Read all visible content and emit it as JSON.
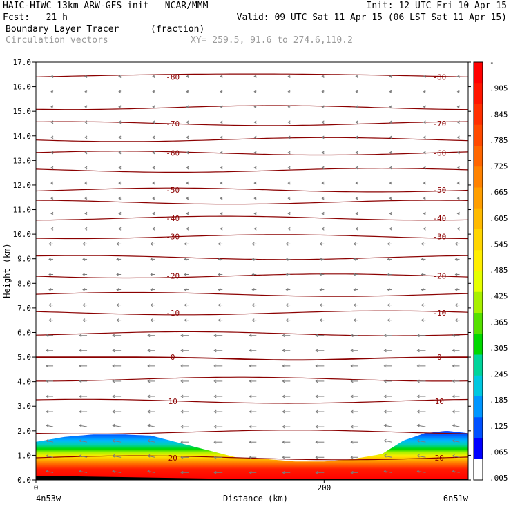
{
  "header": {
    "line1_left": "HAIC-HIWC 13km ARW-GFS init   NCAR/MMM",
    "line1_right": "Init: 12 UTC Fri 10 Apr 15",
    "line2_left": "Fcst:   21 h",
    "line2_right": "Valid: 09 UTC Sat 11 Apr 15 (06 LST Sat 11 Apr 15)",
    "field_name": "Boundary Layer Tracer",
    "field_units": "(fraction)",
    "vector_label": "Circulation vectors",
    "xy_label": "XY= 259.5, 91.6 to 274.6,110.2"
  },
  "chart_data": {
    "type": "cross-section",
    "xlabel": "Distance (km)",
    "ylabel": "Height (km)",
    "xlim": [
      0,
      300
    ],
    "ylim": [
      0,
      17
    ],
    "x_ticks": [
      0,
      200
    ],
    "x_end_labels": [
      "4n53w",
      "6n51w"
    ],
    "y_ticks": [
      "0.0",
      "1.0",
      "2.0",
      "3.0",
      "4.0",
      "5.0",
      "6.0",
      "7.0",
      "8.0",
      "9.0",
      "10.0",
      "11.0",
      "12.0",
      "13.0",
      "14.0",
      "15.0",
      "16.0",
      "17.0"
    ],
    "colorbar_labels": [
      "-",
      ".905",
      ".845",
      ".785",
      ".725",
      ".665",
      ".605",
      ".545",
      ".485",
      ".425",
      ".365",
      ".305",
      ".245",
      ".185",
      ".125",
      ".065",
      ".005"
    ],
    "colorbar_colors": [
      "#ff0000",
      "#ff1500",
      "#ff2f00",
      "#ff4a00",
      "#ff6600",
      "#ff8200",
      "#ff9e00",
      "#ffba00",
      "#ffd500",
      "#ffee00",
      "#e6ff00",
      "#a8f000",
      "#55e000",
      "#00d800",
      "#00d49a",
      "#00c8e0",
      "#0096ff",
      "#0050ff",
      "#0000ff",
      "#ffffff"
    ],
    "temperature_contours": {
      "color": "#8b0000",
      "lines": [
        {
          "label": "20",
          "height_km": 0.9
        },
        {
          "label": "10",
          "height_km": 3.2
        },
        {
          "label": "0",
          "height_km": 5.0
        },
        {
          "label": "-10",
          "height_km": 6.8
        },
        {
          "label": "-20",
          "height_km": 8.3
        },
        {
          "label": "-30",
          "height_km": 9.9
        },
        {
          "label": "-40",
          "height_km": 10.65
        },
        {
          "label": "-50",
          "height_km": 11.8
        },
        {
          "label": "-60",
          "height_km": 13.3
        },
        {
          "label": "-70",
          "height_km": 14.5
        },
        {
          "label": "-80",
          "height_km": 16.4
        }
      ],
      "extra_heights_km": [
        1.95,
        4.1,
        5.95,
        7.55,
        9.05,
        11.3,
        12.6,
        13.85,
        15.15
      ]
    },
    "tracer_top_km": [
      [
        0,
        1.55
      ],
      [
        20,
        1.75
      ],
      [
        40,
        1.85
      ],
      [
        60,
        1.85
      ],
      [
        80,
        1.8
      ],
      [
        100,
        1.5
      ],
      [
        120,
        1.2
      ],
      [
        140,
        0.9
      ],
      [
        160,
        0.85
      ],
      [
        180,
        0.75
      ],
      [
        200,
        0.75
      ],
      [
        220,
        0.85
      ],
      [
        240,
        1.05
      ],
      [
        255,
        1.6
      ],
      [
        270,
        1.9
      ],
      [
        285,
        2.0
      ],
      [
        300,
        1.9
      ]
    ]
  }
}
